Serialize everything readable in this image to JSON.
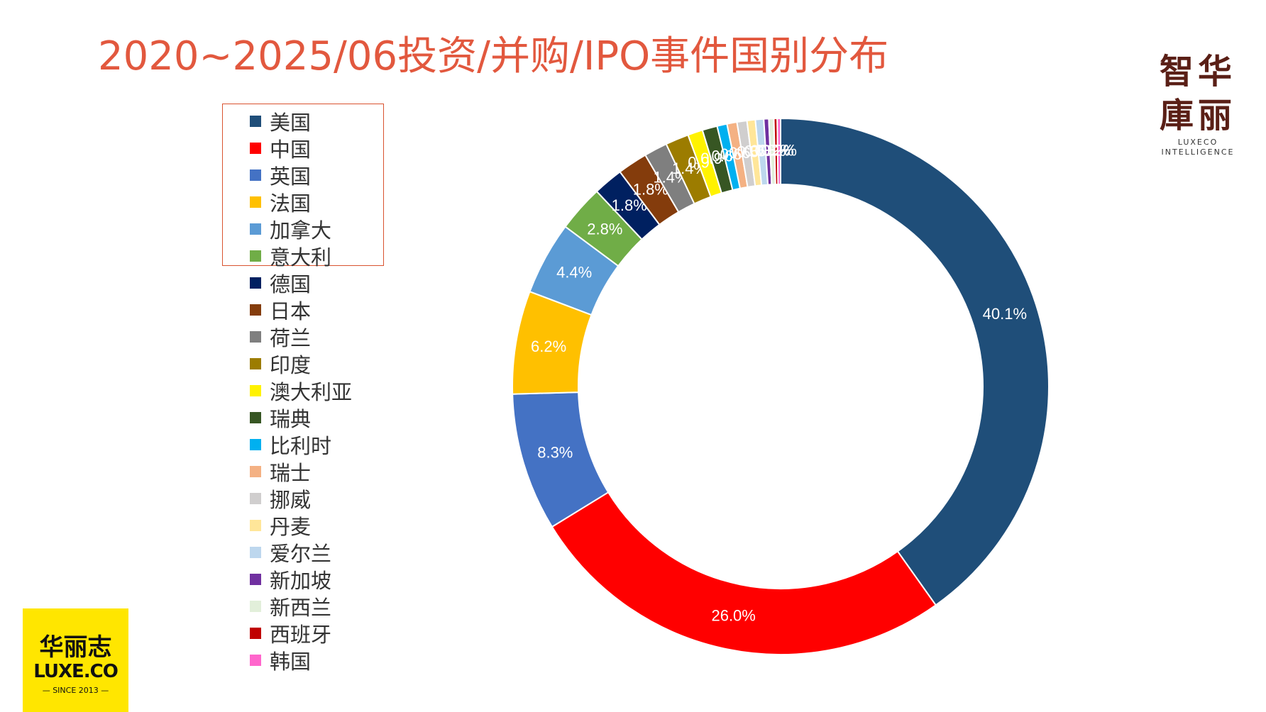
{
  "chart_data": {
    "type": "pie",
    "title": "2020~2025/06投资/并购/IPO事件国别分布",
    "categories": [
      "美国",
      "中国",
      "英国",
      "法国",
      "加拿大",
      "意大利",
      "德国",
      "日本",
      "荷兰",
      "印度",
      "澳大利亚",
      "瑞典",
      "比利时",
      "瑞士",
      "挪威",
      "丹麦",
      "爱尔兰",
      "新加坡",
      "新西兰",
      "西班牙",
      "韩国"
    ],
    "values": [
      40.1,
      26.0,
      8.3,
      6.2,
      4.4,
      2.8,
      1.8,
      1.8,
      1.4,
      1.4,
      0.9,
      0.9,
      0.6,
      0.6,
      0.6,
      0.5,
      0.5,
      0.3,
      0.3,
      0.2,
      0.2
    ],
    "labels": [
      "40.1%",
      "26.0%",
      "8.3%",
      "6.2%",
      "4.4%",
      "2.8%",
      "1.8%",
      "1.8%",
      "1.4%",
      "1.4%",
      "0.9%",
      "0.9%",
      "0.6%",
      "0.6%",
      "0.6%",
      "0.5%",
      "0.5%",
      "0.3%",
      "0.3%",
      "0.2%",
      "0.2%"
    ],
    "colors": [
      "#1F4E79",
      "#FF0000",
      "#4472C4",
      "#FFC000",
      "#5B9BD5",
      "#70AD47",
      "#002060",
      "#843C0C",
      "#7F7F7F",
      "#9C7C00",
      "#FFF200",
      "#375623",
      "#00B0F0",
      "#F4B183",
      "#D0CECE",
      "#FFE699",
      "#BDD7EE",
      "#7030A0",
      "#E2EFDA",
      "#C00000",
      "#FF66CC"
    ],
    "legend_position": "left",
    "donut": true
  },
  "brand": {
    "top_right_cn_line1": "智华",
    "top_right_cn_line2": "庫丽",
    "top_right_en_line1": "LUXECO",
    "top_right_en_line2": "INTELLIGENCE",
    "bottom_left_cn": "华丽志",
    "bottom_left_en": "LUXE.CO",
    "bottom_left_since": "— SINCE 2013 —"
  }
}
